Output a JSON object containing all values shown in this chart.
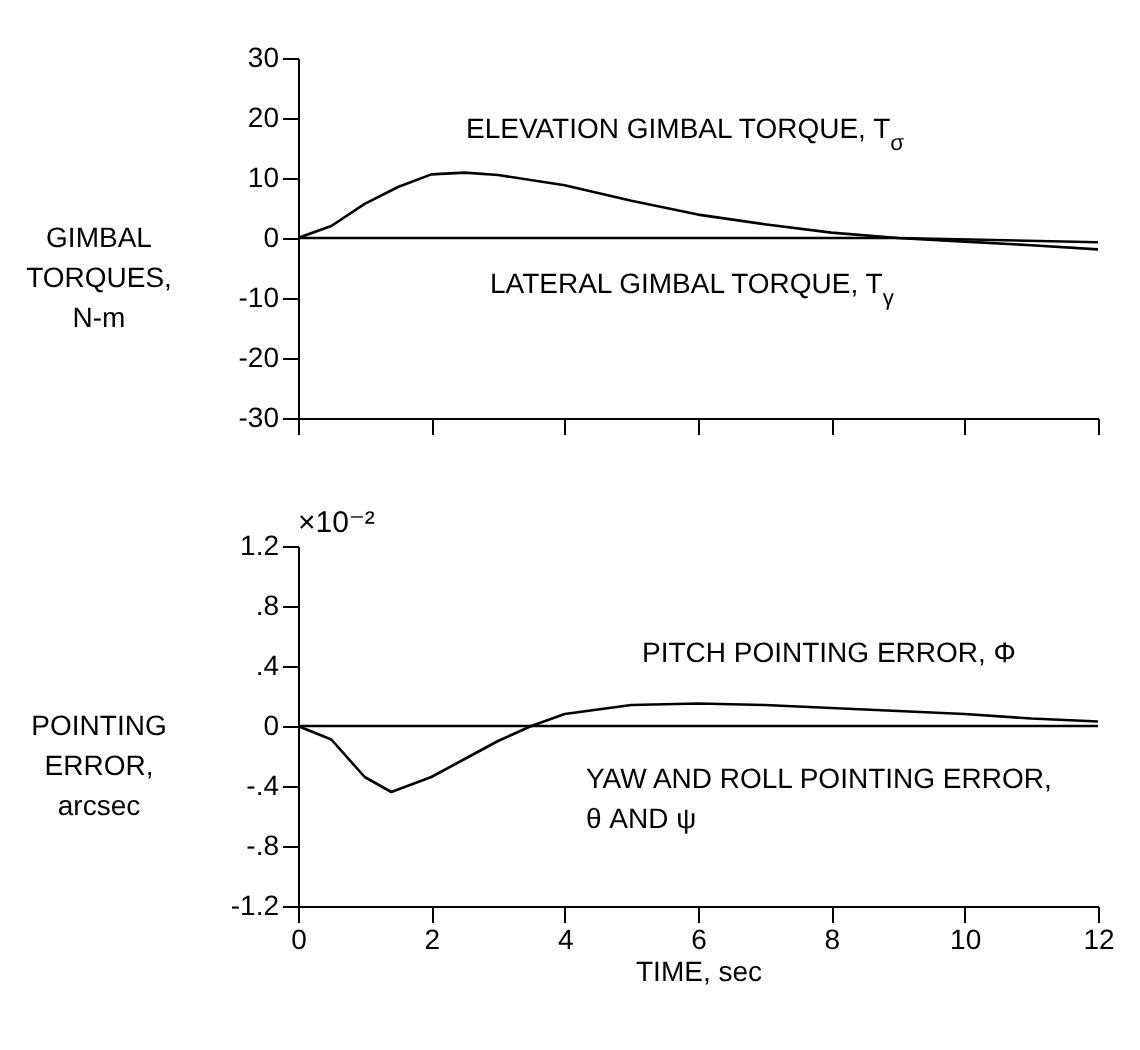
{
  "chart_data": [
    {
      "type": "line",
      "ylabel": "GIMBAL TORQUES, N-m",
      "xlim": [
        0,
        12
      ],
      "xticks": [
        0,
        2,
        4,
        6,
        8,
        10,
        12
      ],
      "ylim": [
        -30,
        30
      ],
      "yticks": [
        -30,
        -20,
        -10,
        0,
        10,
        20,
        30
      ],
      "tick_labels": "y",
      "grid": false,
      "marker": "none",
      "line_style": "solid",
      "series": [
        {
          "name": "ELEVATION GIMBAL TORQUE, T$_{σ}$",
          "color": "#000000",
          "x": [
            0,
            0.5,
            1,
            1.5,
            2,
            2.5,
            3,
            4,
            5,
            6,
            7,
            8,
            9,
            10,
            11,
            12
          ],
          "values": [
            0,
            2,
            5.7,
            8.5,
            10.6,
            10.9,
            10.5,
            8.8,
            6.2,
            3.9,
            2.3,
            0.9,
            0,
            -0.6,
            -1.2,
            -1.9
          ]
        },
        {
          "name": "LATERAL GIMBAL TORQUE, T$_{γ}$",
          "color": "#000000",
          "x": [
            0,
            9,
            12
          ],
          "values": [
            0,
            0,
            -0.7
          ]
        }
      ]
    },
    {
      "type": "line",
      "xlabel": "TIME, sec",
      "ylabel": "POINTING ERROR, arcsec",
      "annotations": [
        "×10⁻²"
      ],
      "xlim": [
        0,
        12
      ],
      "xticks": [
        0,
        2,
        4,
        6,
        8,
        10,
        12
      ],
      "ylim": [
        -1.2,
        1.2
      ],
      "yticks": [
        {
          "value": -1.2,
          "label": "-1.2"
        },
        {
          "value": -0.8,
          "label": "-.8"
        },
        {
          "value": -0.4,
          "label": "-.4"
        },
        0,
        {
          "value": 0.4,
          "label": ".4"
        },
        {
          "value": 0.8,
          "label": ".8"
        },
        {
          "value": 1.2,
          "label": "1.2"
        }
      ],
      "grid": false,
      "marker": "none",
      "line_style": "solid",
      "series": [
        {
          "name": "PITCH POINTING ERROR, Φ",
          "color": "#000000",
          "x": [
            0,
            0.5,
            1,
            1.4,
            2,
            2.5,
            3,
            3.5,
            4,
            4.5,
            5,
            6,
            7,
            8,
            9,
            10,
            11,
            12
          ],
          "values": [
            0,
            -0.09,
            -0.34,
            -0.44,
            -0.34,
            -0.22,
            -0.1,
            0,
            0.08,
            0.11,
            0.14,
            0.15,
            0.14,
            0.12,
            0.1,
            0.08,
            0.05,
            0.03
          ]
        },
        {
          "name": "YAW AND ROLL POINTING ERROR, θ AND ψ",
          "color": "#000000",
          "x": [
            0,
            12
          ],
          "values": [
            0,
            0
          ]
        }
      ]
    }
  ]
}
